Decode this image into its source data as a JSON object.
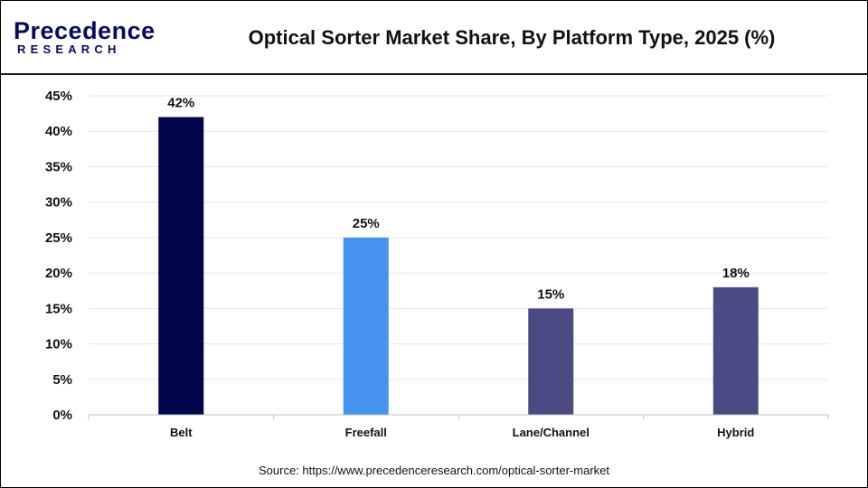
{
  "logo": {
    "top": "Precedence",
    "bottom": "RESEARCH"
  },
  "title": "Optical Sorter Market Share, By Platform Type, 2025 (%)",
  "source": "Source: https://www.precedenceresearch.com/optical-sorter-market",
  "chart_data": {
    "type": "bar",
    "title": "Optical Sorter Market Share, By Platform Type, 2025 (%)",
    "categories": [
      "Belt",
      "Freefall",
      "Lane/Channel",
      "Hybrid"
    ],
    "values": [
      42,
      25,
      15,
      18
    ],
    "data_labels": [
      "42%",
      "25%",
      "15%",
      "18%"
    ],
    "colors": [
      "#03054a",
      "#4593ef",
      "#4a4a85",
      "#4a4a85"
    ],
    "ylim": [
      0,
      45
    ],
    "yticks": [
      0,
      5,
      10,
      15,
      20,
      25,
      30,
      35,
      40,
      45
    ],
    "ytick_labels": [
      "0%",
      "5%",
      "10%",
      "15%",
      "20%",
      "25%",
      "30%",
      "35%",
      "40%",
      "45%"
    ],
    "xlabel": "",
    "ylabel": "",
    "grid": true,
    "grid_color": "#e6e6e6",
    "legend": "none"
  }
}
